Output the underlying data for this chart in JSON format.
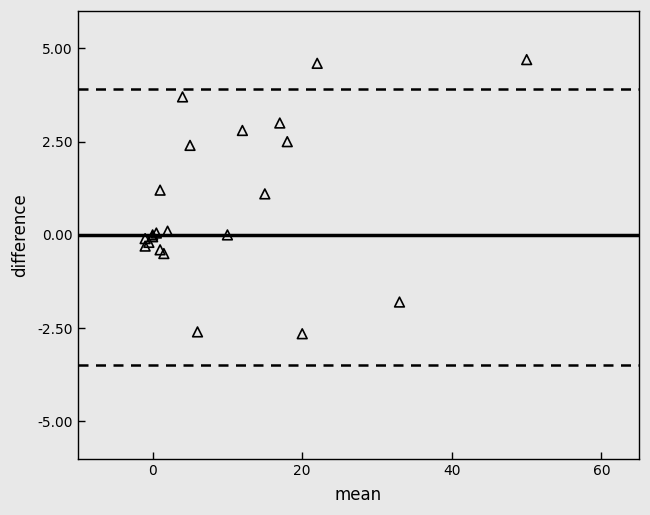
{
  "title": "",
  "xlabel": "mean",
  "ylabel": "difference",
  "xlim": [
    -10,
    65
  ],
  "ylim": [
    -6,
    6
  ],
  "xticks": [
    0,
    20,
    40,
    60
  ],
  "yticks": [
    -5.0,
    -2.5,
    0.0,
    2.5,
    5.0
  ],
  "mean_line": 0.0,
  "upper_loa": 3.9,
  "lower_loa": -3.5,
  "points_x": [
    -1,
    -1,
    -0.5,
    0,
    0,
    0.5,
    1,
    1,
    1.5,
    2,
    4,
    5,
    6,
    10,
    12,
    15,
    17,
    18,
    20,
    22,
    33,
    50
  ],
  "points_y": [
    -0.1,
    -0.3,
    -0.2,
    0.0,
    -0.05,
    0.05,
    1.2,
    -0.4,
    -0.5,
    0.1,
    3.7,
    2.4,
    -2.6,
    0.0,
    2.8,
    1.1,
    3.0,
    2.5,
    -2.65,
    4.6,
    -1.8,
    4.7
  ],
  "marker_color": "black",
  "marker_facecolor": "none",
  "marker_size": 7,
  "line_color": "black",
  "loa_color": "black",
  "bg_color": "#e8e8e8",
  "mean_lw": 2.5,
  "loa_lw": 1.8
}
